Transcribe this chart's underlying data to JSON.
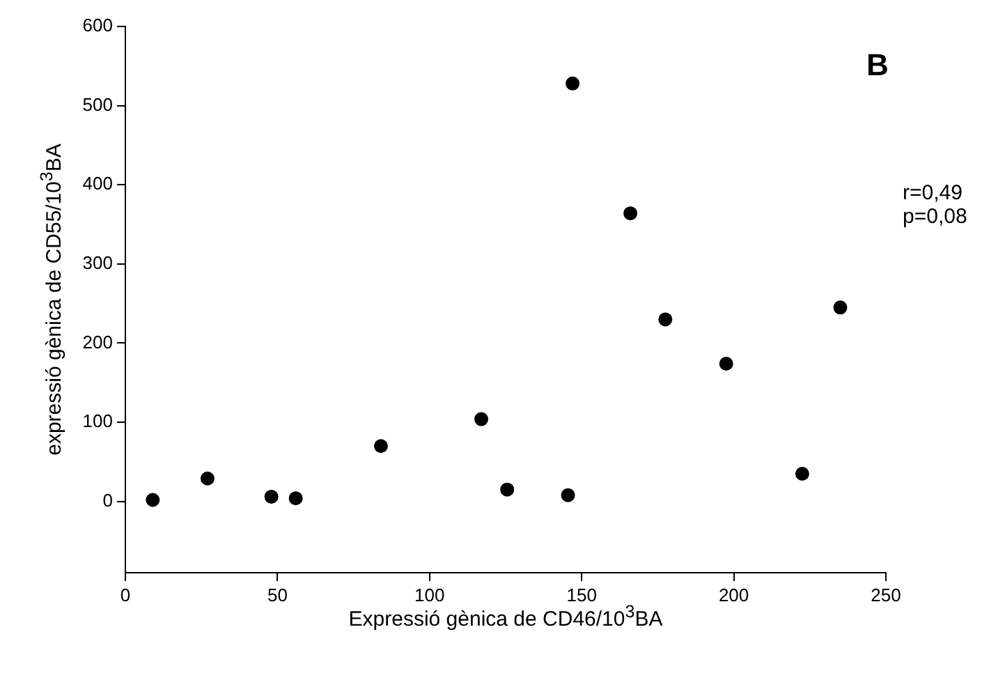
{
  "chart_data": {
    "type": "scatter",
    "xlabel": "Expressió gènica de CD46/10$^{3}$BA",
    "ylabel": "expressió gènica de CD55/10$^{3}$BA",
    "annotations": [
      "B",
      "r=0,49\np=0,08"
    ],
    "x": [
      9,
      27,
      48,
      56,
      84,
      117,
      125.5,
      145.5,
      147,
      166,
      177.5,
      197.5,
      222.5,
      235
    ],
    "values": [
      2,
      29,
      6,
      4,
      70,
      104,
      15,
      8,
      528,
      364,
      230,
      174,
      35,
      245
    ],
    "color": "#000000",
    "marker": "circle",
    "xlim": [
      0,
      250
    ],
    "xticks": [
      0,
      50,
      100,
      150,
      200,
      250
    ],
    "ylim": [
      -90,
      600
    ],
    "yticks": [
      0,
      100,
      200,
      300,
      400,
      500,
      600
    ],
    "grid": false,
    "legend": false
  }
}
